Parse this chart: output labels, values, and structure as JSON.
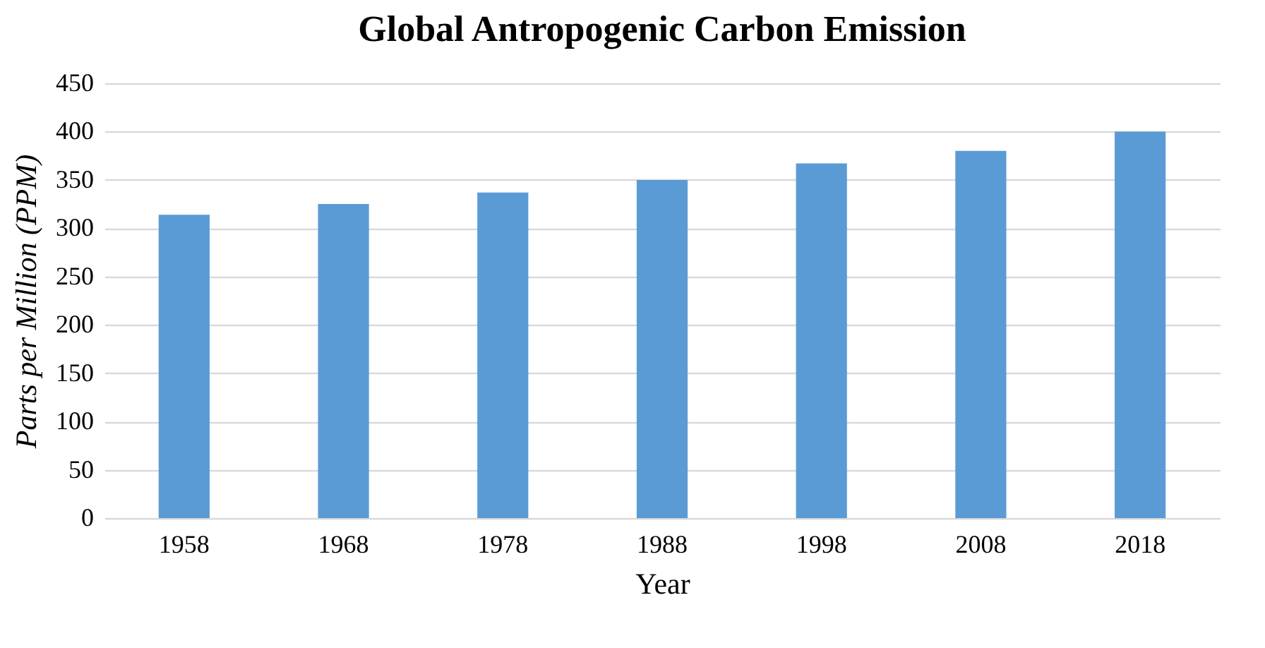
{
  "chart_data": {
    "type": "bar",
    "title": "Global Antropogenic Carbon Emission",
    "xlabel": "Year",
    "ylabel": "Parts per Million (PPM)",
    "categories": [
      "1958",
      "1968",
      "1978",
      "1988",
      "1998",
      "2008",
      "2018"
    ],
    "values": [
      314,
      325,
      337,
      350,
      367,
      380,
      400
    ],
    "color": "#5b9bd5",
    "ylim": [
      0,
      450
    ],
    "yticks": [
      0,
      50,
      100,
      150,
      200,
      250,
      300,
      350,
      400,
      450
    ],
    "grid": "y"
  }
}
